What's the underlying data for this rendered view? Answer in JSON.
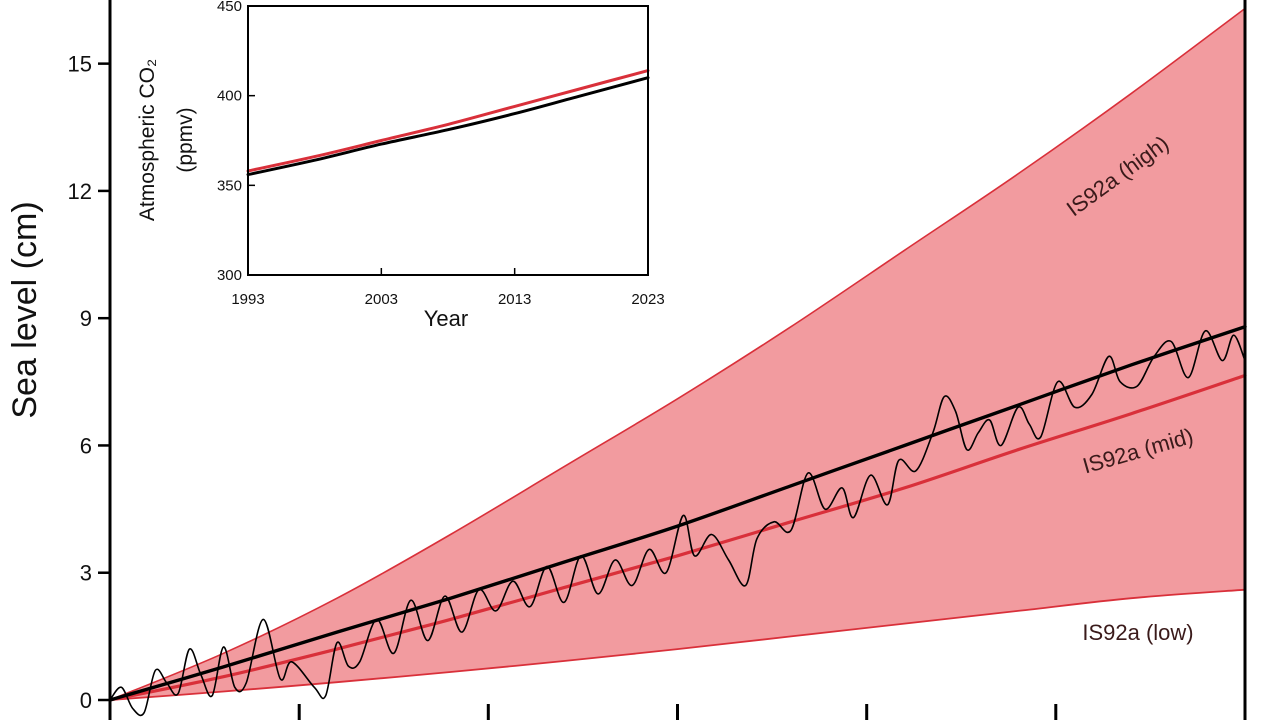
{
  "chart_data": [
    {
      "type": "line",
      "ylabel": "Sea level (cm)",
      "xlabel": "",
      "ylim": [
        0,
        16.5
      ],
      "yticks": [
        0,
        3,
        6,
        9,
        12,
        15
      ],
      "xlim": [
        0,
        1
      ],
      "xticks": [
        0,
        0.1667,
        0.3333,
        0.5,
        0.6667,
        0.8333,
        1.0
      ],
      "band": {
        "name": "IS92a",
        "fill_color": "#f29b9f",
        "edge_color": "#d9303a",
        "low": [
          [
            0,
            0
          ],
          [
            0.1,
            0.2
          ],
          [
            0.2,
            0.42
          ],
          [
            0.3,
            0.66
          ],
          [
            0.4,
            0.92
          ],
          [
            0.5,
            1.2
          ],
          [
            0.6,
            1.5
          ],
          [
            0.7,
            1.8
          ],
          [
            0.8,
            2.1
          ],
          [
            0.9,
            2.4
          ],
          [
            1.0,
            2.6
          ]
        ],
        "high": [
          [
            0,
            0
          ],
          [
            0.1,
            1.1
          ],
          [
            0.2,
            2.4
          ],
          [
            0.3,
            3.9
          ],
          [
            0.4,
            5.5
          ],
          [
            0.5,
            7.1
          ],
          [
            0.6,
            8.8
          ],
          [
            0.7,
            10.6
          ],
          [
            0.8,
            12.4
          ],
          [
            0.9,
            14.3
          ],
          [
            1.0,
            16.3
          ]
        ]
      },
      "series": [
        {
          "label": "IS92a (mid)",
          "color": "#d9303a",
          "points": [
            [
              0,
              0
            ],
            [
              0.1,
              0.55
            ],
            [
              0.2,
              1.2
            ],
            [
              0.3,
              1.9
            ],
            [
              0.4,
              2.65
            ],
            [
              0.5,
              3.4
            ],
            [
              0.6,
              4.2
            ],
            [
              0.7,
              5.0
            ],
            [
              0.8,
              5.9
            ],
            [
              0.9,
              6.75
            ],
            [
              1.0,
              7.65
            ]
          ]
        },
        {
          "color": "#000000",
          "style": "trend",
          "points": [
            [
              0,
              0
            ],
            [
              0.1,
              0.78
            ],
            [
              0.2,
              1.6
            ],
            [
              0.3,
              2.4
            ],
            [
              0.4,
              3.25
            ],
            [
              0.5,
              4.1
            ],
            [
              0.6,
              5.05
            ],
            [
              0.7,
              6.0
            ],
            [
              0.8,
              6.95
            ],
            [
              0.9,
              7.9
            ],
            [
              1.0,
              8.8
            ]
          ]
        },
        {
          "color": "#000000",
          "style": "observed",
          "points": [
            [
              0,
              0
            ],
            [
              0.01,
              0.3
            ],
            [
              0.02,
              -0.2
            ],
            [
              0.03,
              -0.3
            ],
            [
              0.04,
              0.7
            ],
            [
              0.05,
              0.4
            ],
            [
              0.06,
              0.15
            ],
            [
              0.07,
              1.2
            ],
            [
              0.08,
              0.6
            ],
            [
              0.09,
              0.1
            ],
            [
              0.1,
              1.25
            ],
            [
              0.11,
              0.3
            ],
            [
              0.12,
              0.4
            ],
            [
              0.135,
              1.9
            ],
            [
              0.15,
              0.5
            ],
            [
              0.16,
              0.9
            ],
            [
              0.18,
              0.3
            ],
            [
              0.19,
              0.1
            ],
            [
              0.2,
              1.35
            ],
            [
              0.21,
              0.8
            ],
            [
              0.22,
              0.9
            ],
            [
              0.235,
              1.9
            ],
            [
              0.25,
              1.1
            ],
            [
              0.265,
              2.35
            ],
            [
              0.28,
              1.4
            ],
            [
              0.295,
              2.45
            ],
            [
              0.31,
              1.6
            ],
            [
              0.325,
              2.6
            ],
            [
              0.34,
              2.1
            ],
            [
              0.355,
              2.8
            ],
            [
              0.37,
              2.2
            ],
            [
              0.385,
              3.15
            ],
            [
              0.4,
              2.3
            ],
            [
              0.415,
              3.4
            ],
            [
              0.43,
              2.5
            ],
            [
              0.445,
              3.3
            ],
            [
              0.46,
              2.7
            ],
            [
              0.475,
              3.55
            ],
            [
              0.49,
              3.0
            ],
            [
              0.505,
              4.35
            ],
            [
              0.515,
              3.4
            ],
            [
              0.53,
              3.9
            ],
            [
              0.545,
              3.3
            ],
            [
              0.56,
              2.7
            ],
            [
              0.57,
              3.8
            ],
            [
              0.585,
              4.2
            ],
            [
              0.6,
              4.0
            ],
            [
              0.615,
              5.35
            ],
            [
              0.63,
              4.5
            ],
            [
              0.645,
              5.0
            ],
            [
              0.655,
              4.3
            ],
            [
              0.67,
              5.3
            ],
            [
              0.685,
              4.6
            ],
            [
              0.695,
              5.65
            ],
            [
              0.71,
              5.4
            ],
            [
              0.725,
              6.3
            ],
            [
              0.735,
              7.15
            ],
            [
              0.745,
              6.8
            ],
            [
              0.755,
              5.9
            ],
            [
              0.765,
              6.3
            ],
            [
              0.775,
              6.6
            ],
            [
              0.785,
              6.0
            ],
            [
              0.8,
              6.9
            ],
            [
              0.81,
              6.5
            ],
            [
              0.82,
              6.2
            ],
            [
              0.835,
              7.5
            ],
            [
              0.85,
              6.9
            ],
            [
              0.865,
              7.2
            ],
            [
              0.88,
              8.1
            ],
            [
              0.89,
              7.5
            ],
            [
              0.905,
              7.4
            ],
            [
              0.92,
              8.1
            ],
            [
              0.935,
              8.45
            ],
            [
              0.95,
              7.6
            ],
            [
              0.965,
              8.7
            ],
            [
              0.98,
              8.0
            ],
            [
              0.99,
              8.6
            ],
            [
              1.0,
              8.0
            ]
          ]
        }
      ],
      "annotations": [
        {
          "text": "IS92a (high)"
        },
        {
          "text": "IS92a (mid)"
        },
        {
          "text": "IS92a (low)"
        }
      ]
    },
    {
      "type": "line",
      "role": "inset",
      "xlabel": "Year",
      "ylabel_line1": "Atmospheric CO₂",
      "ylabel_line2": "(ppmv)",
      "xlim": [
        1993,
        2023
      ],
      "ylim": [
        300,
        450
      ],
      "xticks": [
        1993,
        2003,
        2013,
        2023
      ],
      "yticks": [
        300,
        350,
        400,
        450
      ],
      "series": [
        {
          "color": "#d9303a",
          "points": [
            [
              1993,
              358
            ],
            [
              1998,
              366
            ],
            [
              2003,
              375
            ],
            [
              2008,
              384
            ],
            [
              2013,
              394
            ],
            [
              2018,
              404
            ],
            [
              2023,
              414
            ]
          ]
        },
        {
          "color": "#000000",
          "points": [
            [
              1993,
              356
            ],
            [
              1998,
              364
            ],
            [
              2003,
              373
            ],
            [
              2008,
              381
            ],
            [
              2013,
              390
            ],
            [
              2018,
              400
            ],
            [
              2023,
              410
            ]
          ]
        }
      ]
    }
  ]
}
